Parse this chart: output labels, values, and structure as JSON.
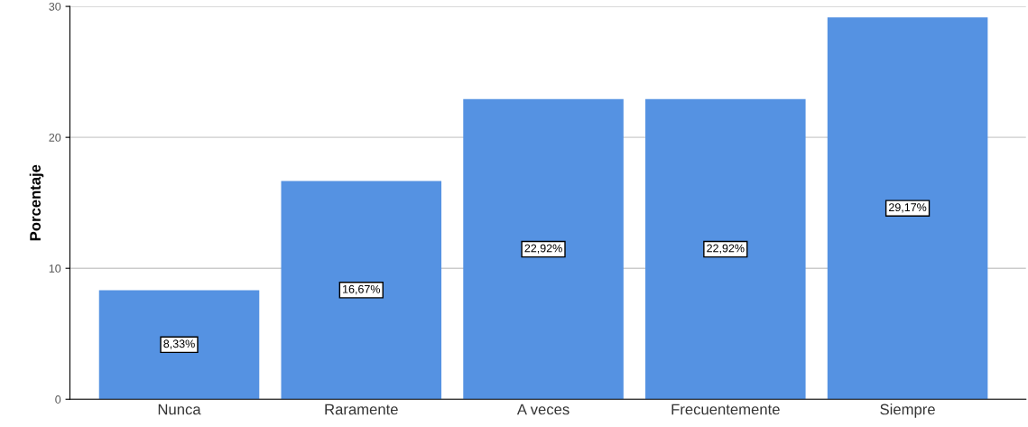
{
  "chart_data": {
    "type": "bar",
    "ylabel": "Porcentaje",
    "categories": [
      "Nunca",
      "Raramente",
      "A veces",
      "Frecuentemente",
      "Siempre"
    ],
    "values": [
      8.33,
      16.67,
      22.92,
      22.92,
      29.17
    ],
    "value_labels": [
      "8,33%",
      "16,67%",
      "22,92%",
      "22,92%",
      "29,17%"
    ],
    "color": "#5592e2",
    "ylim": [
      0,
      30
    ],
    "yticks": [
      0,
      10,
      20,
      30
    ],
    "grid": "y"
  }
}
